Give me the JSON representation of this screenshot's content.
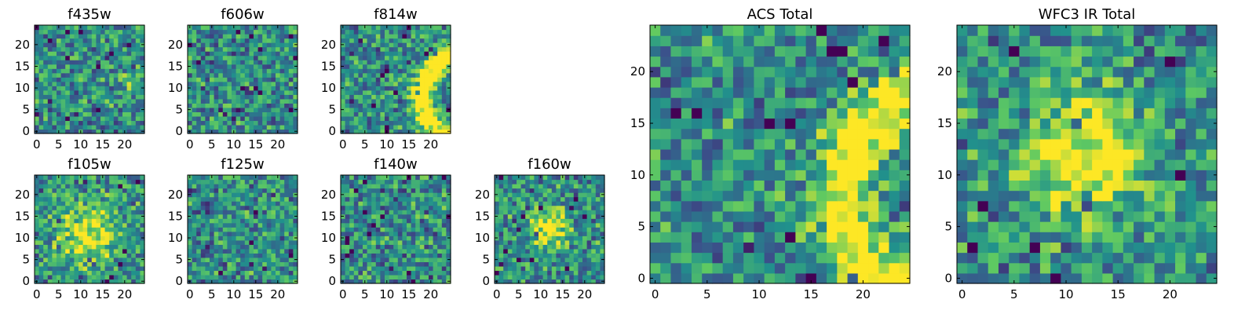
{
  "figure": {
    "colormap": "viridis",
    "colormap_stops": [
      "#440154",
      "#3b528b",
      "#21918c",
      "#5ec962",
      "#fde725"
    ],
    "frame_color": "#000000"
  },
  "chart_data": [
    {
      "type": "heatmap",
      "title": "f435w",
      "xlabel": "",
      "ylabel": "",
      "xlim": [
        0,
        24
      ],
      "ylim": [
        0,
        24
      ],
      "xticks": [
        "0",
        "5",
        "10",
        "15",
        "20"
      ],
      "yticks": [
        "0",
        "5",
        "10",
        "15",
        "20"
      ],
      "pattern": "noise",
      "grid_size": [
        25,
        25
      ],
      "vmin": 0,
      "vmax": 1,
      "features": [
        {
          "kind": "blob",
          "cx": 21,
          "cy": 12,
          "sigma": 1.5,
          "amp": 0.3
        }
      ],
      "seed": 11
    },
    {
      "type": "heatmap",
      "title": "f606w",
      "xlabel": "",
      "ylabel": "",
      "xlim": [
        0,
        24
      ],
      "ylim": [
        0,
        24
      ],
      "xticks": [
        "0",
        "5",
        "10",
        "15",
        "20"
      ],
      "yticks": [
        "0",
        "5",
        "10",
        "15",
        "20"
      ],
      "pattern": "noise",
      "grid_size": [
        25,
        25
      ],
      "vmin": 0,
      "vmax": 1,
      "features": [],
      "seed": 23
    },
    {
      "type": "heatmap",
      "title": "f814w",
      "xlabel": "",
      "ylabel": "",
      "xlim": [
        0,
        24
      ],
      "ylim": [
        0,
        24
      ],
      "xticks": [
        "0",
        "5",
        "10",
        "15",
        "20"
      ],
      "yticks": [
        "0",
        "5",
        "10",
        "15",
        "20"
      ],
      "pattern": "noise",
      "grid_size": [
        25,
        25
      ],
      "vmin": 0,
      "vmax": 1,
      "features": [
        {
          "kind": "arc",
          "cx": 28,
          "cy": 8,
          "radius": 10,
          "width": 1.6,
          "amp": 0.8
        }
      ],
      "seed": 37
    },
    {
      "type": "heatmap",
      "title": "f105w",
      "xlabel": "",
      "ylabel": "",
      "xlim": [
        0,
        24
      ],
      "ylim": [
        0,
        24
      ],
      "xticks": [
        "0",
        "5",
        "10",
        "15",
        "20"
      ],
      "yticks": [
        "0",
        "5",
        "10",
        "15",
        "20"
      ],
      "pattern": "noise",
      "grid_size": [
        25,
        25
      ],
      "vmin": 0,
      "vmax": 1,
      "features": [
        {
          "kind": "blob",
          "cx": 12,
          "cy": 11,
          "sigma": 5,
          "amp": 0.45
        }
      ],
      "seed": 41
    },
    {
      "type": "heatmap",
      "title": "f125w",
      "xlabel": "",
      "ylabel": "",
      "xlim": [
        0,
        24
      ],
      "ylim": [
        0,
        24
      ],
      "xticks": [
        "0",
        "5",
        "10",
        "15",
        "20"
      ],
      "yticks": [
        "0",
        "5",
        "10",
        "15",
        "20"
      ],
      "pattern": "noise",
      "grid_size": [
        25,
        25
      ],
      "vmin": 0,
      "vmax": 1,
      "features": [],
      "seed": 53
    },
    {
      "type": "heatmap",
      "title": "f140w",
      "xlabel": "",
      "ylabel": "",
      "xlim": [
        0,
        24
      ],
      "ylim": [
        0,
        24
      ],
      "xticks": [
        "0",
        "5",
        "10",
        "15",
        "20"
      ],
      "yticks": [
        "0",
        "5",
        "10",
        "15",
        "20"
      ],
      "pattern": "noise",
      "grid_size": [
        25,
        25
      ],
      "vmin": 0,
      "vmax": 1,
      "features": [],
      "seed": 67
    },
    {
      "type": "heatmap",
      "title": "f160w",
      "xlabel": "",
      "ylabel": "",
      "xlim": [
        0,
        24
      ],
      "ylim": [
        0,
        24
      ],
      "xticks": [
        "0",
        "5",
        "10",
        "15",
        "20"
      ],
      "yticks": [
        "0",
        "5",
        "10",
        "15",
        "20"
      ],
      "pattern": "noise",
      "grid_size": [
        25,
        25
      ],
      "vmin": 0,
      "vmax": 1,
      "features": [
        {
          "kind": "blob",
          "cx": 12,
          "cy": 12,
          "sigma": 3,
          "amp": 0.5
        }
      ],
      "seed": 79
    },
    {
      "type": "heatmap",
      "title": "ACS Total",
      "xlabel": "",
      "ylabel": "",
      "xlim": [
        0,
        24
      ],
      "ylim": [
        0,
        24
      ],
      "xticks": [
        "0",
        "5",
        "10",
        "15",
        "20"
      ],
      "yticks": [
        "0",
        "5",
        "10",
        "15",
        "20"
      ],
      "pattern": "noise",
      "grid_size": [
        25,
        25
      ],
      "vmin": 0,
      "vmax": 1,
      "features": [
        {
          "kind": "arc",
          "cx": 28,
          "cy": 8,
          "radius": 10,
          "width": 2,
          "amp": 0.6
        }
      ],
      "seed": 83
    },
    {
      "type": "heatmap",
      "title": "WFC3 IR Total",
      "xlabel": "",
      "ylabel": "",
      "xlim": [
        0,
        24
      ],
      "ylim": [
        0,
        24
      ],
      "xticks": [
        "0",
        "5",
        "10",
        "15",
        "20"
      ],
      "yticks": [
        "0",
        "5",
        "10",
        "15",
        "20"
      ],
      "pattern": "noise",
      "grid_size": [
        25,
        25
      ],
      "vmin": 0,
      "vmax": 1,
      "features": [
        {
          "kind": "blob",
          "cx": 12,
          "cy": 12,
          "sigma": 4,
          "amp": 0.55
        }
      ],
      "seed": 97
    }
  ]
}
